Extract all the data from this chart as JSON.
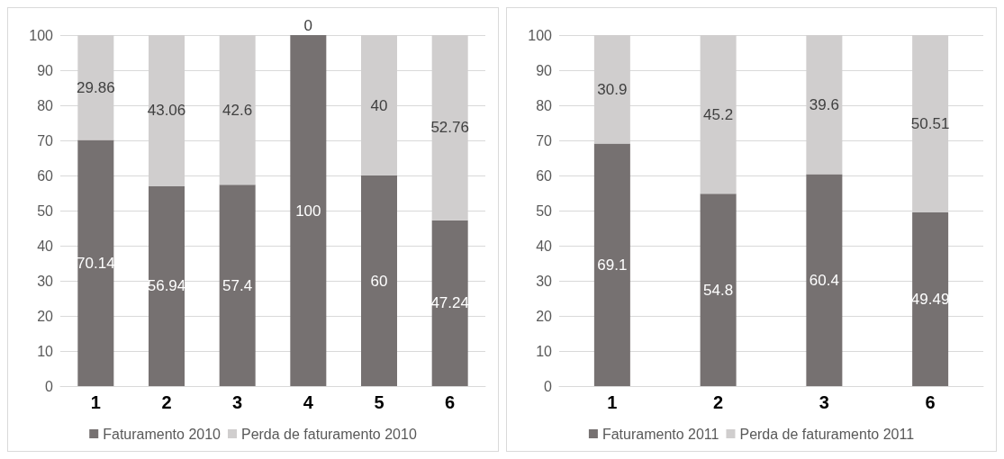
{
  "chart_data": [
    {
      "type": "bar",
      "stacked": true,
      "categories": [
        "1",
        "2",
        "3",
        "4",
        "5",
        "6"
      ],
      "series": [
        {
          "name": "Faturamento 2010",
          "color": "#767171",
          "values": [
            70.14,
            56.94,
            57.4,
            100,
            60,
            47.24
          ]
        },
        {
          "name": "Perda de faturamento 2010",
          "color": "#d0cece",
          "values": [
            29.86,
            43.06,
            42.6,
            0,
            40,
            52.76
          ]
        }
      ],
      "ylim": [
        0,
        100
      ],
      "yticks": [
        0,
        10,
        20,
        30,
        40,
        50,
        60,
        70,
        80,
        90,
        100
      ],
      "grid": "y",
      "legend": "bottom",
      "data_labels": true
    },
    {
      "type": "bar",
      "stacked": true,
      "categories": [
        "1",
        "2",
        "3",
        "6"
      ],
      "series": [
        {
          "name": "Faturamento 2011",
          "color": "#767171",
          "values": [
            69.1,
            54.8,
            60.4,
            49.49
          ]
        },
        {
          "name": "Perda de faturamento 2011",
          "color": "#d0cece",
          "values": [
            30.9,
            45.2,
            39.6,
            50.51
          ]
        }
      ],
      "ylim": [
        0,
        100
      ],
      "yticks": [
        0,
        10,
        20,
        30,
        40,
        50,
        60,
        70,
        80,
        90,
        100
      ],
      "grid": "y",
      "legend": "bottom",
      "data_labels": true
    }
  ]
}
